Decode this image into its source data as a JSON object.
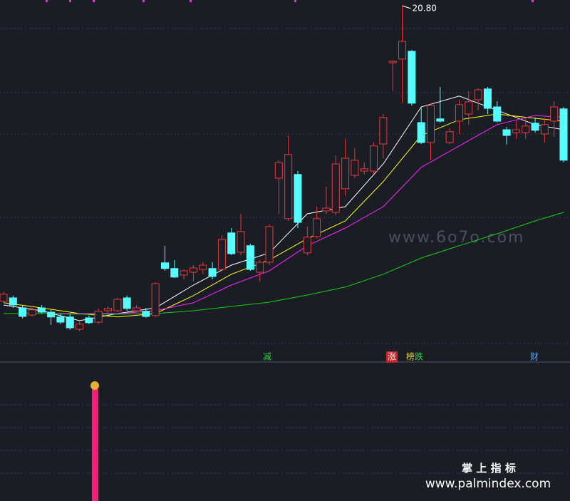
{
  "chart_data": {
    "type": "candlestick",
    "open": [
      10.43,
      10.55,
      10.2,
      9.95,
      10.2,
      10.05,
      9.88,
      9.88,
      9.45,
      9.85,
      9.7,
      10.1,
      10.1,
      10.55,
      10.1,
      10.08,
      9.93,
      11.78,
      11.58,
      11.35,
      11.45,
      11.55,
      11.58,
      11.55,
      12.83,
      12.15,
      12.38,
      11.45,
      11.8,
      14.75,
      13.33,
      14.88,
      12.13,
      12.7,
      13.6,
      13.55,
      14.38,
      14.85,
      15.0,
      15.0,
      15.95,
      18.8,
      18.93,
      19.2,
      16.7,
      16.0,
      16.83,
      16.0,
      16.75,
      17.0,
      17.5,
      17.88,
      17.25,
      16.45,
      16.35,
      16.35,
      16.68,
      16.3,
      16.75,
      17.18
    ],
    "high": [
      10.75,
      10.63,
      10.3,
      10.25,
      10.3,
      10.13,
      10.0,
      10.0,
      9.75,
      9.93,
      10.18,
      10.25,
      10.55,
      10.63,
      10.3,
      10.2,
      11.1,
      12.38,
      11.88,
      11.55,
      11.7,
      11.8,
      11.8,
      12.75,
      13.0,
      13.5,
      12.45,
      11.88,
      13.13,
      15.38,
      16.25,
      15.0,
      13.05,
      13.75,
      14.45,
      15.55,
      16.13,
      15.8,
      15.3,
      16.0,
      17.0,
      18.88,
      20.8,
      19.25,
      17.25,
      17.35,
      17.95,
      16.5,
      17.5,
      17.8,
      17.9,
      17.95,
      17.45,
      16.55,
      16.75,
      16.88,
      16.88,
      16.88,
      17.45,
      17.25
    ],
    "low": [
      10.38,
      10.2,
      9.83,
      9.9,
      10.0,
      9.6,
      9.63,
      9.43,
      9.38,
      9.63,
      9.63,
      10.0,
      10.05,
      10.1,
      10.05,
      9.85,
      9.88,
      11.5,
      11.25,
      11.2,
      11.13,
      11.38,
      11.2,
      11.5,
      12.05,
      12.05,
      11.5,
      11.13,
      11.7,
      13.5,
      13.25,
      13.0,
      12.05,
      12.63,
      13.5,
      13.45,
      14.13,
      14.75,
      14.88,
      14.88,
      15.45,
      17.8,
      17.38,
      17.3,
      15.95,
      15.38,
      16.7,
      15.95,
      16.3,
      16.63,
      17.13,
      17.0,
      16.7,
      15.93,
      16.13,
      16.13,
      16.35,
      16.0,
      16.2,
      15.3
    ],
    "close": [
      10.68,
      10.3,
      9.9,
      10.13,
      10.05,
      9.88,
      9.7,
      9.5,
      9.63,
      9.68,
      10.08,
      10.18,
      10.5,
      10.18,
      10.2,
      9.9,
      11.05,
      11.58,
      11.28,
      11.5,
      11.6,
      11.7,
      11.3,
      12.6,
      12.1,
      12.88,
      11.55,
      11.8,
      13.05,
      15.3,
      15.58,
      13.2,
      12.68,
      13.33,
      13.7,
      15.25,
      15.45,
      15.38,
      15.08,
      15.88,
      16.88,
      18.85,
      19.55,
      17.38,
      16.0,
      17.3,
      16.75,
      16.38,
      17.33,
      17.43,
      17.85,
      17.2,
      16.75,
      16.25,
      16.45,
      16.58,
      16.43,
      16.63,
      17.25,
      15.38
    ],
    "up_color": "#e8373a",
    "down_color": "#54ffff",
    "ylim": [
      9,
      21
    ],
    "ma": [
      {
        "color": "#ffffff",
        "x": [
          0,
          4,
          8,
          12,
          16,
          20,
          24,
          28,
          32,
          36,
          40,
          44,
          48,
          52,
          56,
          59
        ],
        "values": [
          10.3,
          10.1,
          9.75,
          10.0,
          10.2,
          11.0,
          11.7,
          12.13,
          13.5,
          13.75,
          15.25,
          17.25,
          17.63,
          17.13,
          16.63,
          16.45
        ]
      },
      {
        "color": "#ffff00",
        "x": [
          0,
          4,
          8,
          12,
          16,
          20,
          24,
          28,
          32,
          36,
          40,
          44,
          48,
          52,
          56,
          59
        ],
        "values": [
          10.38,
          10.2,
          10.0,
          9.88,
          10.0,
          10.63,
          11.38,
          11.88,
          12.63,
          13.25,
          14.63,
          16.25,
          16.8,
          17.0,
          16.85,
          16.75
        ]
      },
      {
        "color": "#ff22ff",
        "x": [
          0,
          4,
          8,
          12,
          16,
          20,
          24,
          28,
          32,
          36,
          40,
          44,
          48,
          52,
          56,
          59
        ],
        "values": [
          10.0,
          10.0,
          10.0,
          10.0,
          10.1,
          10.38,
          11.0,
          11.5,
          12.38,
          13.0,
          13.75,
          15.13,
          15.88,
          16.63,
          16.95,
          16.88
        ]
      },
      {
        "color": "#10d010",
        "x": [
          0,
          4,
          8,
          12,
          16,
          20,
          24,
          28,
          32,
          36,
          40,
          44,
          48,
          52,
          56,
          59
        ],
        "values": [
          10.0,
          10.0,
          9.98,
          9.98,
          10.0,
          10.1,
          10.25,
          10.4,
          10.65,
          10.93,
          11.38,
          11.95,
          12.38,
          12.8,
          13.25,
          13.55
        ]
      }
    ],
    "peak_label": "20.80",
    "signals": [
      "减",
      "涨",
      "榜",
      "跌",
      "财"
    ],
    "watermarks": [
      "www.6o7o.com",
      "掌 上 指 标",
      "www.palmindex.com"
    ]
  }
}
